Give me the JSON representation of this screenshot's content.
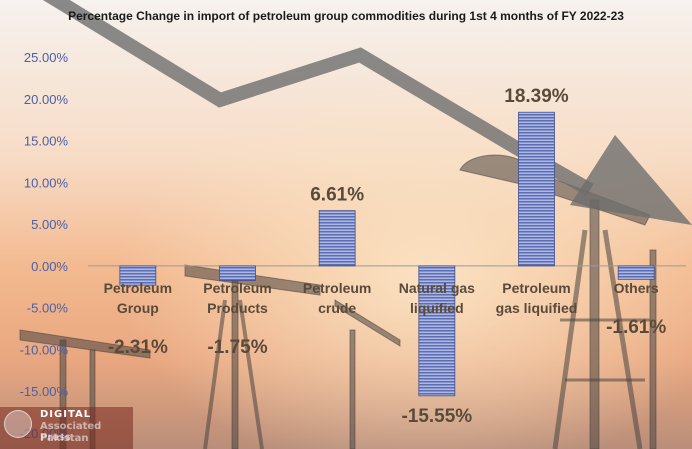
{
  "colors": {
    "bar_fill": "#5a6db5",
    "bar_stroke": "#3f4f8f",
    "label_text": "#5a4a3a",
    "tick_text": "#4a5fa8",
    "arrow": "#6e6e6e"
  },
  "watermark": {
    "line1": "DIGITAL",
    "line2": "Associated Press",
    "line3": "Pakistan"
  },
  "chart_data": {
    "type": "bar",
    "title": "Percentage Change in import of petroleum group commodities during 1st 4 months of FY 2022-23",
    "xlabel": "",
    "ylabel": "",
    "categories": [
      [
        "Petroleum",
        "Group"
      ],
      [
        "Petroleum",
        "Products"
      ],
      [
        "Petroleum",
        "crude"
      ],
      [
        "Natural gas",
        "liquified"
      ],
      [
        "Petroleum",
        "gas liquified"
      ],
      [
        "Others"
      ]
    ],
    "values": [
      -2.31,
      -1.75,
      6.61,
      -15.55,
      18.39,
      -1.61
    ],
    "data_labels": [
      "-2.31%",
      "-1.75%",
      "6.61%",
      "-15.55%",
      "18.39%",
      "-1.61%"
    ],
    "ylim": [
      -20,
      25
    ],
    "yticks": [
      25,
      20,
      15,
      10,
      5,
      0,
      -5,
      -10,
      -15,
      -20
    ],
    "ytick_labels": [
      "25.00%",
      "20.00%",
      "15.00%",
      "10.00%",
      "5.00%",
      "0.00%",
      "-5.00%",
      "-10.00%",
      "-15.00%",
      "-20.00%"
    ],
    "grid": false,
    "legend": "none"
  }
}
